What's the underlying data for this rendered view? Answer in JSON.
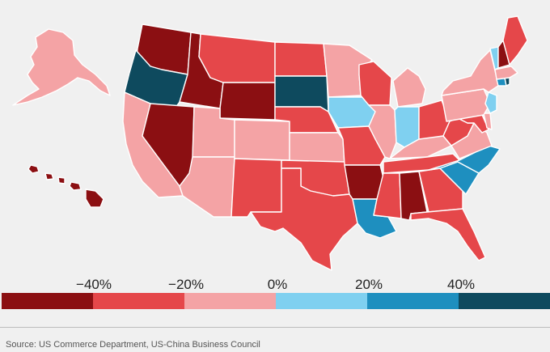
{
  "colors": {
    "bin1": "#8b0f12",
    "bin2": "#e5474a",
    "bin3": "#f4a3a5",
    "bin4": "#7fd0f0",
    "bin5": "#1e8fbf",
    "bin6": "#0e4a5e"
  },
  "legend": {
    "labels": [
      "−40%",
      "−20%",
      "0%",
      "20%",
      "40%"
    ],
    "bins": [
      "bin1",
      "bin2",
      "bin3",
      "bin4",
      "bin5",
      "bin6"
    ]
  },
  "source": "Source: US Commerce Department, US-China Business Council",
  "states": [
    {
      "id": "WA",
      "bin": "bin1"
    },
    {
      "id": "OR",
      "bin": "bin6"
    },
    {
      "id": "CA",
      "bin": "bin3"
    },
    {
      "id": "ID",
      "bin": "bin1"
    },
    {
      "id": "NV",
      "bin": "bin1"
    },
    {
      "id": "AZ",
      "bin": "bin3"
    },
    {
      "id": "MT",
      "bin": "bin2"
    },
    {
      "id": "WY",
      "bin": "bin1"
    },
    {
      "id": "UT",
      "bin": "bin3"
    },
    {
      "id": "CO",
      "bin": "bin3"
    },
    {
      "id": "NM",
      "bin": "bin2"
    },
    {
      "id": "ND",
      "bin": "bin2"
    },
    {
      "id": "SD",
      "bin": "bin6"
    },
    {
      "id": "NE",
      "bin": "bin2"
    },
    {
      "id": "KS",
      "bin": "bin3"
    },
    {
      "id": "OK",
      "bin": "bin2"
    },
    {
      "id": "TX",
      "bin": "bin2"
    },
    {
      "id": "MN",
      "bin": "bin3"
    },
    {
      "id": "IA",
      "bin": "bin4"
    },
    {
      "id": "MO",
      "bin": "bin2"
    },
    {
      "id": "AR",
      "bin": "bin1"
    },
    {
      "id": "LA",
      "bin": "bin5"
    },
    {
      "id": "WI",
      "bin": "bin2"
    },
    {
      "id": "IL",
      "bin": "bin3"
    },
    {
      "id": "MI",
      "bin": "bin3"
    },
    {
      "id": "IN",
      "bin": "bin4"
    },
    {
      "id": "OH",
      "bin": "bin2"
    },
    {
      "id": "KY",
      "bin": "bin3"
    },
    {
      "id": "TN",
      "bin": "bin2"
    },
    {
      "id": "MS",
      "bin": "bin2"
    },
    {
      "id": "AL",
      "bin": "bin1"
    },
    {
      "id": "GA",
      "bin": "bin2"
    },
    {
      "id": "FL",
      "bin": "bin2"
    },
    {
      "id": "SC",
      "bin": "bin5"
    },
    {
      "id": "NC",
      "bin": "bin5"
    },
    {
      "id": "VA",
      "bin": "bin3"
    },
    {
      "id": "WV",
      "bin": "bin2"
    },
    {
      "id": "MD",
      "bin": "bin2"
    },
    {
      "id": "DE",
      "bin": "bin3"
    },
    {
      "id": "PA",
      "bin": "bin3"
    },
    {
      "id": "NY",
      "bin": "bin3"
    },
    {
      "id": "NJ",
      "bin": "bin4"
    },
    {
      "id": "CT",
      "bin": "bin5"
    },
    {
      "id": "RI",
      "bin": "bin6"
    },
    {
      "id": "MA",
      "bin": "bin3"
    },
    {
      "id": "VT",
      "bin": "bin4"
    },
    {
      "id": "NH",
      "bin": "bin1"
    },
    {
      "id": "ME",
      "bin": "bin2"
    },
    {
      "id": "AK",
      "bin": "bin3"
    },
    {
      "id": "HI",
      "bin": "bin1"
    }
  ]
}
